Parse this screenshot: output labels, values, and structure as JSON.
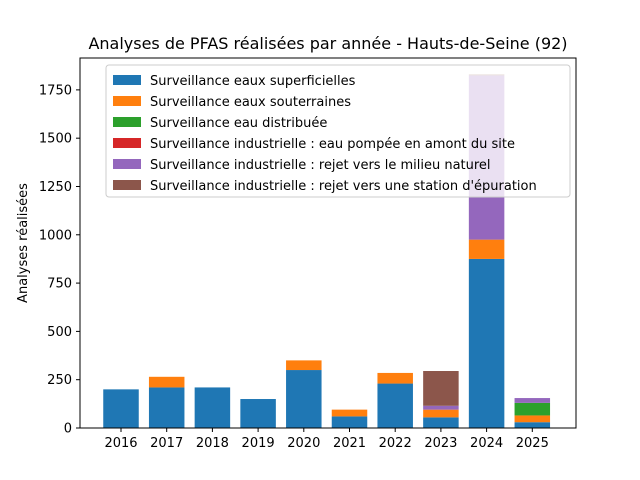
{
  "chart_data": {
    "type": "bar",
    "stacked": true,
    "title": "Analyses de PFAS réalisées par année - Hauts-de-Seine (92)",
    "xlabel": "",
    "ylabel": "Analyses réalisées",
    "categories": [
      "2016",
      "2017",
      "2018",
      "2019",
      "2020",
      "2021",
      "2022",
      "2023",
      "2024",
      "2025"
    ],
    "ylim": [
      0,
      1915
    ],
    "yticks": [
      0,
      250,
      500,
      750,
      1000,
      1250,
      1500,
      1750
    ],
    "legend_position": "top-right",
    "grid": false,
    "series": [
      {
        "name": "Surveillance eaux superficielles",
        "color": "#1f77b4",
        "values": [
          200,
          210,
          210,
          150,
          300,
          60,
          230,
          55,
          875,
          30
        ]
      },
      {
        "name": "Surveillance eaux souterraines",
        "color": "#ff7f0e",
        "values": [
          0,
          55,
          0,
          0,
          50,
          35,
          55,
          40,
          100,
          35
        ]
      },
      {
        "name": "Surveillance eau distribuée",
        "color": "#2ca02c",
        "values": [
          0,
          0,
          0,
          0,
          0,
          0,
          0,
          0,
          0,
          65
        ]
      },
      {
        "name": "Surveillance industrielle : eau pompée en amont du site",
        "color": "#d62728",
        "values": [
          0,
          0,
          0,
          0,
          0,
          0,
          0,
          0,
          0,
          0
        ]
      },
      {
        "name": "Surveillance industrielle : rejet vers le milieu naturel",
        "color": "#9467bd",
        "values": [
          0,
          0,
          0,
          0,
          0,
          0,
          0,
          20,
          850,
          25
        ]
      },
      {
        "name": "Surveillance industrielle : rejet vers une station d'épuration",
        "color": "#8c564b",
        "values": [
          0,
          0,
          0,
          0,
          0,
          0,
          0,
          180,
          5,
          0
        ]
      }
    ]
  }
}
